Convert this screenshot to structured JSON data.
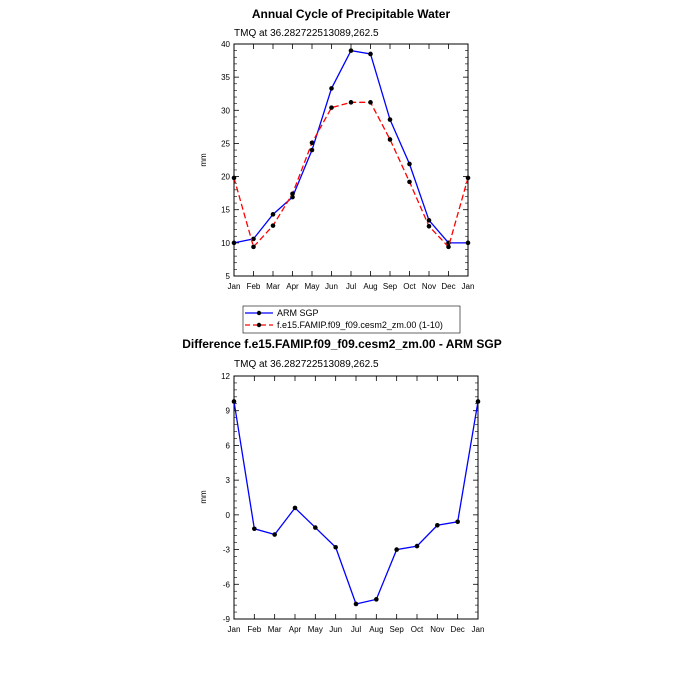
{
  "chart_data": [
    {
      "type": "line",
      "title": "Annual Cycle of Precipitable Water",
      "subtitle": "TMQ at 36.282722513089,262.5",
      "xlabel": "",
      "ylabel": "mm",
      "categories": [
        "Jan",
        "Feb",
        "Mar",
        "Apr",
        "May",
        "Jun",
        "Jul",
        "Aug",
        "Sep",
        "Oct",
        "Nov",
        "Dec",
        "Jan"
      ],
      "ylim": [
        5,
        40
      ],
      "yticks": [
        5,
        10,
        15,
        20,
        25,
        30,
        35,
        40
      ],
      "legend_position": "bottom",
      "series": [
        {
          "name": "ARM SGP",
          "color": "#0000ff",
          "dash": "solid",
          "values": [
            10.0,
            10.6,
            14.3,
            16.9,
            24.0,
            33.3,
            39.0,
            38.5,
            28.6,
            21.9,
            13.4,
            10.0,
            10.0
          ]
        },
        {
          "name": "f.e15.FAMIP.f09_f09.cesm2_zm.00 (1-10)",
          "color": "#ff0000",
          "dash": "dashed",
          "values": [
            19.8,
            9.4,
            12.6,
            17.4,
            25.1,
            30.4,
            31.2,
            31.2,
            25.6,
            19.2,
            12.5,
            9.4,
            19.8
          ]
        }
      ]
    },
    {
      "type": "line",
      "title": "Difference f.e15.FAMIP.f09_f09.cesm2_zm.00 - ARM SGP",
      "subtitle": "TMQ at 36.282722513089,262.5",
      "xlabel": "",
      "ylabel": "mm",
      "categories": [
        "Jan",
        "Feb",
        "Mar",
        "Apr",
        "May",
        "Jun",
        "Jul",
        "Aug",
        "Sep",
        "Oct",
        "Nov",
        "Dec",
        "Jan"
      ],
      "ylim": [
        -9,
        12
      ],
      "yticks": [
        -9,
        -6,
        -3,
        0,
        3,
        6,
        9,
        12
      ],
      "series": [
        {
          "color": "#0000ff",
          "dash": "solid",
          "values": [
            9.8,
            -1.2,
            -1.7,
            0.6,
            -1.1,
            -2.8,
            -7.7,
            -7.3,
            -3.0,
            -2.7,
            -0.9,
            -0.6,
            9.8
          ]
        }
      ]
    }
  ]
}
